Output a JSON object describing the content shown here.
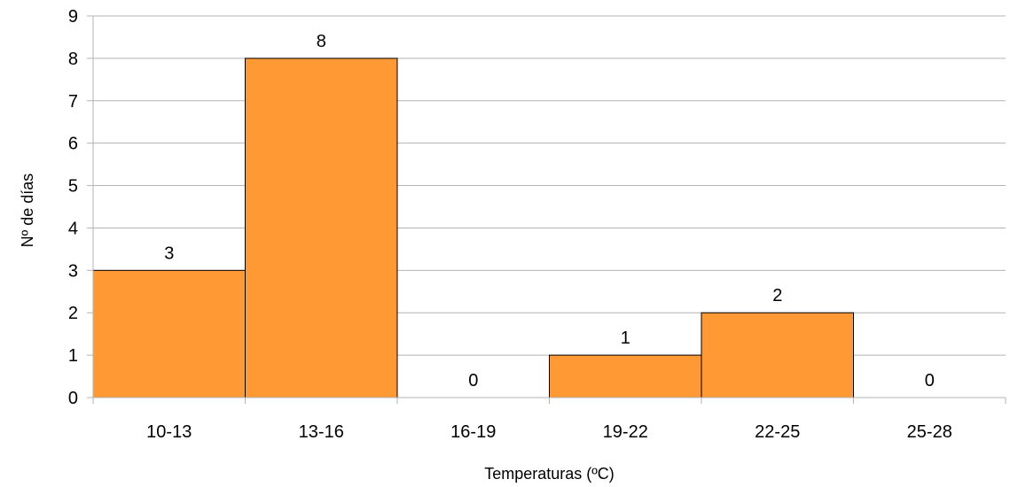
{
  "chart_data": {
    "type": "bar",
    "categories": [
      "10-13",
      "13-16",
      "16-19",
      "19-22",
      "22-25",
      "25-28"
    ],
    "values": [
      3,
      8,
      0,
      1,
      2,
      0
    ],
    "data_labels": [
      "3",
      "8",
      "0",
      "1",
      "2",
      "0"
    ],
    "title": "",
    "xlabel": "Temperaturas (ºC)",
    "ylabel": "Nº de días",
    "ylim": [
      0,
      9
    ],
    "yticks": [
      0,
      1,
      2,
      3,
      4,
      5,
      6,
      7,
      8,
      9
    ],
    "grid": "horizontal",
    "legend": "none",
    "colors": {
      "bar_fill": "#ff9933",
      "bar_stroke": "#000000",
      "grid": "#b3b3b3",
      "axis": "#b3b3b3"
    }
  }
}
